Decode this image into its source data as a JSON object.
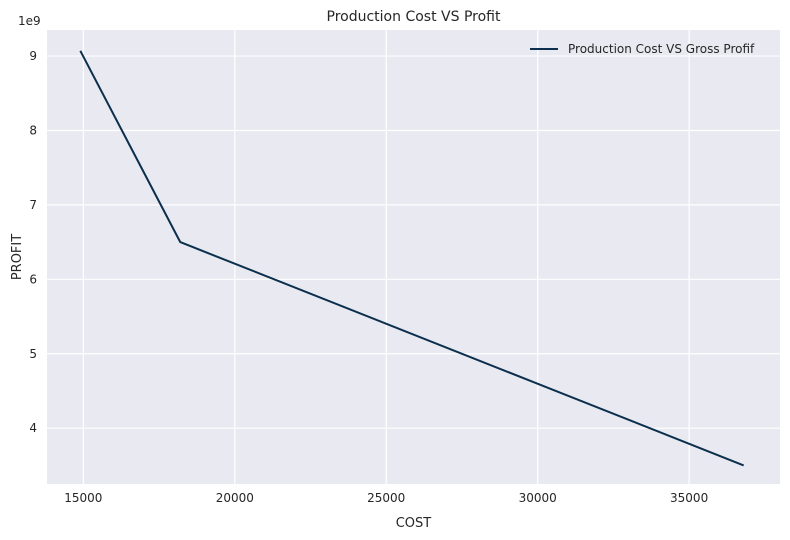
{
  "chart_data": {
    "type": "line",
    "title": "Production Cost VS Profit",
    "xlabel": "COST",
    "ylabel": "PROFIT",
    "y_offset_label": "1e9",
    "xlim": [
      13800,
      38000
    ],
    "ylim": [
      3.25,
      9.35
    ],
    "x_ticks": [
      15000,
      20000,
      25000,
      30000,
      35000
    ],
    "x_tick_labels": [
      "15000",
      "20000",
      "25000",
      "30000",
      "35000"
    ],
    "y_ticks": [
      4,
      5,
      6,
      7,
      8,
      9
    ],
    "y_tick_labels": [
      "4",
      "5",
      "6",
      "7",
      "8",
      "9"
    ],
    "grid": true,
    "legend_position": "top-right",
    "series": [
      {
        "name": "Production Cost VS Gross Profif",
        "color": "#0b2f4c",
        "x": [
          14900,
          18200,
          36800
        ],
        "y": [
          9.07,
          6.5,
          3.5
        ]
      }
    ],
    "colors": {
      "plot_background": "#e9e9f1",
      "grid": "#ffffff",
      "text": "#262626"
    }
  }
}
